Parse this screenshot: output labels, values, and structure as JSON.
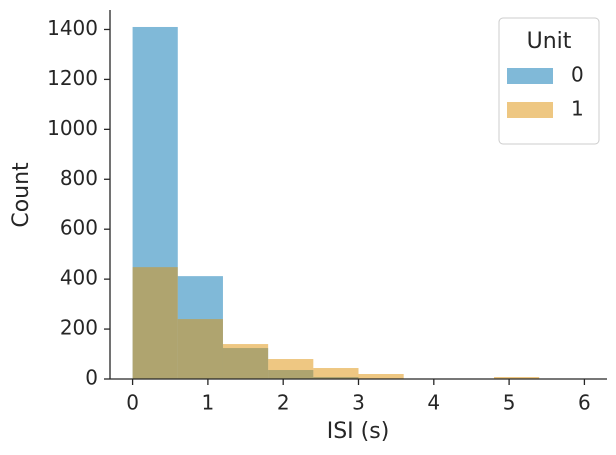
{
  "chart_data": {
    "type": "histogram",
    "xlabel": "ISI (s)",
    "ylabel": "Count",
    "bins": [
      0,
      0.6,
      1.2,
      1.8,
      2.4,
      3.0,
      3.6,
      4.2,
      4.8,
      5.4,
      6.0
    ],
    "series": [
      {
        "name": "0",
        "color": "#0173b2",
        "values": [
          1410,
          412,
          124,
          36,
          8,
          2,
          0,
          0,
          0,
          1
        ]
      },
      {
        "name": "1",
        "color": "#de8f05",
        "values": [
          448,
          240,
          140,
          80,
          44,
          20,
          0,
          0,
          8,
          0
        ]
      }
    ],
    "opacity": 0.5,
    "legend_title": "Unit",
    "legend": "upper right",
    "xlim": [
      -0.3,
      6.3
    ],
    "xticks": [
      0,
      1,
      2,
      3,
      4,
      5,
      6
    ],
    "ylim": [
      0,
      1478
    ],
    "yticks": [
      0,
      200,
      400,
      600,
      800,
      1000,
      1200,
      1400
    ]
  }
}
